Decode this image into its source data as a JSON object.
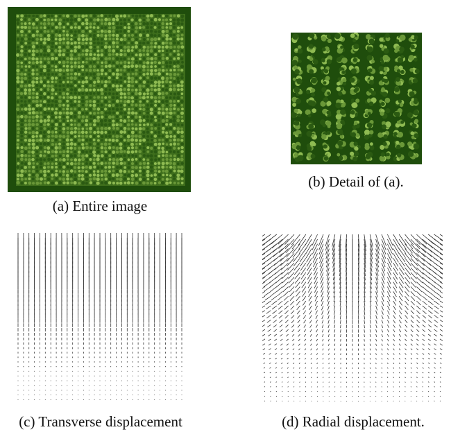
{
  "panels": {
    "a": {
      "caption": "(a) Entire image"
    },
    "b": {
      "caption": "(b) Detail of (a)."
    },
    "c": {
      "caption": "(c) Transverse displacement"
    },
    "d": {
      "caption": "(d) Radial displacement."
    }
  },
  "colors": {
    "field_dark": "#1f4d0c",
    "field_mid": "#3e6e1c",
    "plant_light": "#8fbb52",
    "plant_mid": "#6a9838",
    "plant_dark": "#2b5a12",
    "arrow": "#333333"
  }
}
